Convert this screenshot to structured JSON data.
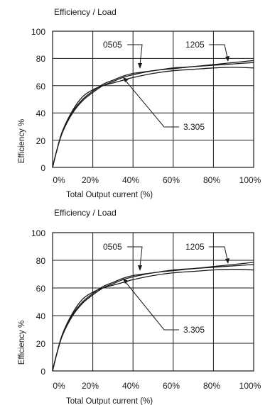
{
  "chart_data": [
    {
      "type": "line",
      "title": "Efficiency / Load",
      "xlabel": "Total Output current (%)",
      "ylabel": "Efficiency %",
      "xlim": [
        0,
        100
      ],
      "ylim": [
        0,
        100
      ],
      "x_ticks": [
        "0%",
        "20%",
        "40%",
        "60%",
        "80%",
        "100%"
      ],
      "y_ticks": [
        "0",
        "20",
        "40",
        "60",
        "80",
        "100"
      ],
      "grid": true,
      "series": [
        {
          "name": "0505",
          "x": [
            0,
            2,
            5,
            10,
            15,
            20,
            25,
            30,
            35,
            40,
            50,
            60,
            70,
            80,
            90,
            100
          ],
          "y": [
            0,
            12,
            27,
            41,
            50,
            56,
            61,
            64,
            67,
            69,
            71,
            73,
            74,
            75,
            76,
            77
          ]
        },
        {
          "name": "1205",
          "x": [
            0,
            2,
            5,
            10,
            15,
            20,
            25,
            30,
            35,
            40,
            50,
            60,
            70,
            80,
            90,
            100
          ],
          "y": [
            0,
            12,
            26,
            40,
            49,
            55,
            60,
            63,
            66,
            68,
            71,
            72.5,
            74,
            75.5,
            77,
            78.5
          ]
        },
        {
          "name": "3.305",
          "x": [
            0,
            2,
            5,
            10,
            15,
            20,
            25,
            30,
            35,
            40,
            50,
            60,
            70,
            80,
            90,
            100
          ],
          "y": [
            0,
            12,
            27,
            42,
            52,
            57,
            60,
            62,
            64,
            66,
            69,
            71,
            72,
            73,
            73.5,
            73
          ]
        }
      ]
    },
    {
      "type": "line",
      "title": "Efficiency / Load",
      "xlabel": "Total Output current (%)",
      "ylabel": "Efficiency %",
      "xlim": [
        0,
        100
      ],
      "ylim": [
        0,
        100
      ],
      "x_ticks": [
        "0%",
        "20%",
        "40%",
        "60%",
        "80%",
        "100%"
      ],
      "y_ticks": [
        "0",
        "20",
        "40",
        "60",
        "80",
        "100"
      ],
      "grid": true,
      "series": [
        {
          "name": "0505",
          "x": [
            0,
            2,
            5,
            10,
            15,
            20,
            25,
            30,
            35,
            40,
            50,
            60,
            70,
            80,
            90,
            100
          ],
          "y": [
            0,
            12,
            27,
            41,
            50,
            56,
            61,
            64,
            67,
            69,
            71,
            73,
            74,
            75,
            76,
            77
          ]
        },
        {
          "name": "1205",
          "x": [
            0,
            2,
            5,
            10,
            15,
            20,
            25,
            30,
            35,
            40,
            50,
            60,
            70,
            80,
            90,
            100
          ],
          "y": [
            0,
            12,
            26,
            40,
            49,
            55,
            60,
            63,
            66,
            68,
            71,
            72.5,
            74,
            75.5,
            77,
            78.5
          ]
        },
        {
          "name": "3.305",
          "x": [
            0,
            2,
            5,
            10,
            15,
            20,
            25,
            30,
            35,
            40,
            50,
            60,
            70,
            80,
            90,
            100
          ],
          "y": [
            0,
            12,
            27,
            42,
            52,
            57,
            60,
            62,
            64,
            66,
            69,
            71,
            72,
            73,
            73.5,
            73
          ]
        }
      ]
    }
  ]
}
